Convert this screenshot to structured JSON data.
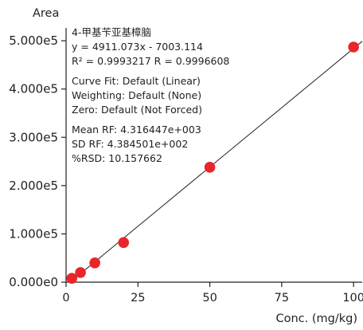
{
  "chart_data": {
    "type": "scatter",
    "ylabel": "Area",
    "xlabel": "Conc. (mg/kg)",
    "xlim": [
      0,
      103
    ],
    "ylim": [
      0,
      520000
    ],
    "x_ticks": [
      0,
      25,
      50,
      75,
      100
    ],
    "x_tick_labels": [
      "0",
      "25",
      "50",
      "75",
      "100"
    ],
    "y_ticks": [
      0,
      100000,
      200000,
      300000,
      400000,
      500000
    ],
    "y_tick_labels": [
      "0.000e0",
      "1.000e5",
      "2.000e5",
      "3.000e5",
      "4.000e5",
      "5.000e5"
    ],
    "grid": false,
    "points": [
      {
        "x": 2,
        "y": 8000
      },
      {
        "x": 5,
        "y": 20000
      },
      {
        "x": 10,
        "y": 40000
      },
      {
        "x": 20,
        "y": 82000
      },
      {
        "x": 50,
        "y": 238000
      },
      {
        "x": 100,
        "y": 487000
      }
    ],
    "fit_line": {
      "slope": 4911.073,
      "intercept": -7003.114,
      "x_range": [
        0,
        103
      ]
    },
    "annotations": [
      "4-甲基苄亚基樟脑",
      "y = 4911.073x - 7003.114",
      "R² = 0.9993217    R = 0.9996608",
      "Curve Fit: Default (Linear)",
      "Weighting: Default (None)",
      "Zero: Default (Not Forced)",
      "Mean RF: 4.316447e+003",
      "SD RF: 4.384501e+002",
      "%RSD: 10.157662"
    ],
    "colors": {
      "point": "#e8262a",
      "line": "#222222",
      "axis": "#222222"
    }
  }
}
